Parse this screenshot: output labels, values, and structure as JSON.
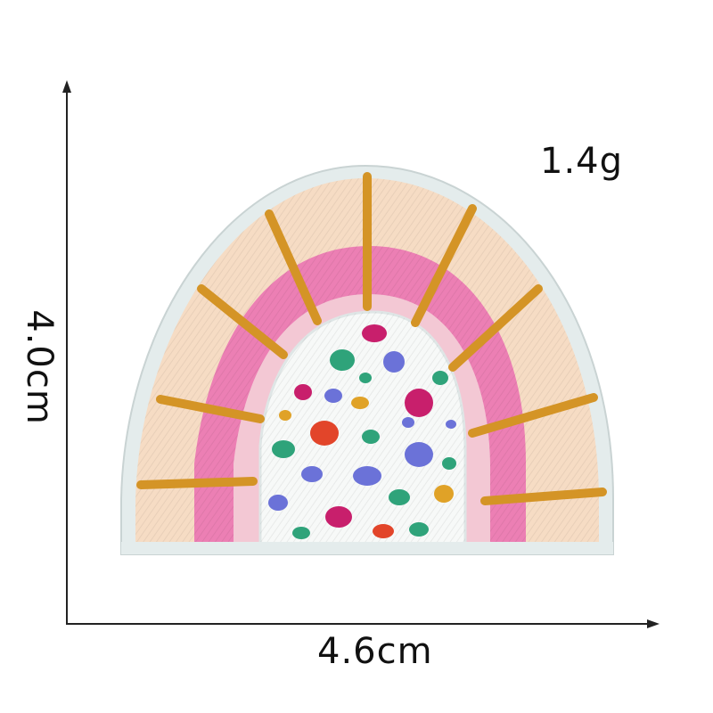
{
  "labels": {
    "weight": "1.4g",
    "width": "4.6cm",
    "height": "4.0cm"
  },
  "colors": {
    "border": "#e6eeee",
    "outer_band": "#f6dcc4",
    "pink_band": "#ec7fb4",
    "inner_white": "#f7f9f8",
    "ray": "#d49426",
    "axis": "#222222"
  },
  "dot_colors": [
    "#2fa37a",
    "#6b72d8",
    "#c81f6c",
    "#e2452a",
    "#e0a227",
    "#d6558f"
  ]
}
